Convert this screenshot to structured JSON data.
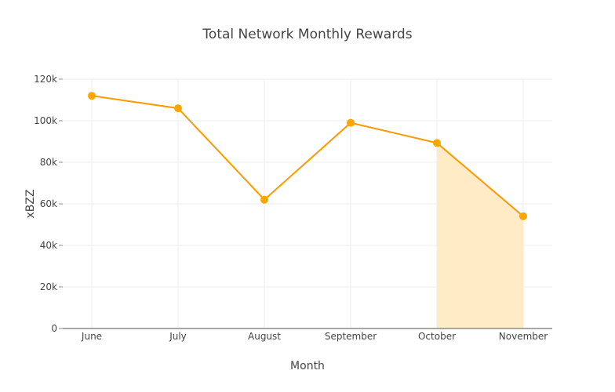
{
  "chart_data": {
    "type": "line",
    "title": "Total Network Monthly Rewards",
    "xlabel": "Month",
    "ylabel": "xBZZ",
    "categories": [
      "June",
      "July",
      "August",
      "September",
      "October",
      "November"
    ],
    "series": [
      {
        "name": "Total Network Monthly Rewards",
        "values": [
          112000,
          106000,
          62000,
          99000,
          89300,
          54000
        ],
        "color": "#ff9900",
        "marker_color": "#ffa500"
      }
    ],
    "highlight_fill": {
      "from": "October",
      "to": "November",
      "color": "#ffebc6"
    },
    "yticks": [
      "0",
      "20k",
      "40k",
      "60k",
      "80k",
      "100k",
      "120k"
    ],
    "ylim": [
      0,
      120000
    ],
    "grid": true,
    "legend": "none"
  }
}
